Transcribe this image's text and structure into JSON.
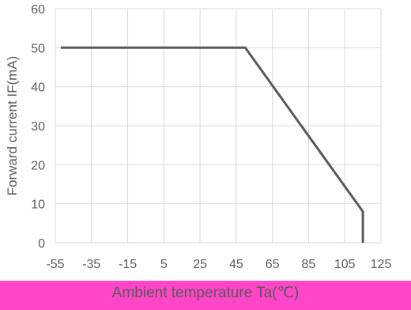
{
  "chart_data": {
    "type": "line",
    "title": "",
    "xlabel": "Ambient temperature Ta(℃)",
    "ylabel": "Forward current IF(mA)",
    "xlim": [
      -55,
      125
    ],
    "ylim": [
      0,
      60
    ],
    "x_ticks": [
      -55,
      -35,
      -15,
      5,
      25,
      45,
      65,
      85,
      105,
      125
    ],
    "y_ticks": [
      0,
      10,
      20,
      30,
      40,
      50,
      60
    ],
    "grid": true,
    "legend": "none",
    "series": [
      {
        "color": "#595959",
        "points": [
          {
            "x": -52,
            "y": 50
          },
          {
            "x": 50,
            "y": 50
          },
          {
            "x": 115,
            "y": 8
          },
          {
            "x": 115,
            "y": 0
          }
        ]
      }
    ],
    "colors": {
      "line": "#595959",
      "grid": "#d9d9d9",
      "text": "#595959",
      "label_band": "#ff45c8"
    }
  }
}
